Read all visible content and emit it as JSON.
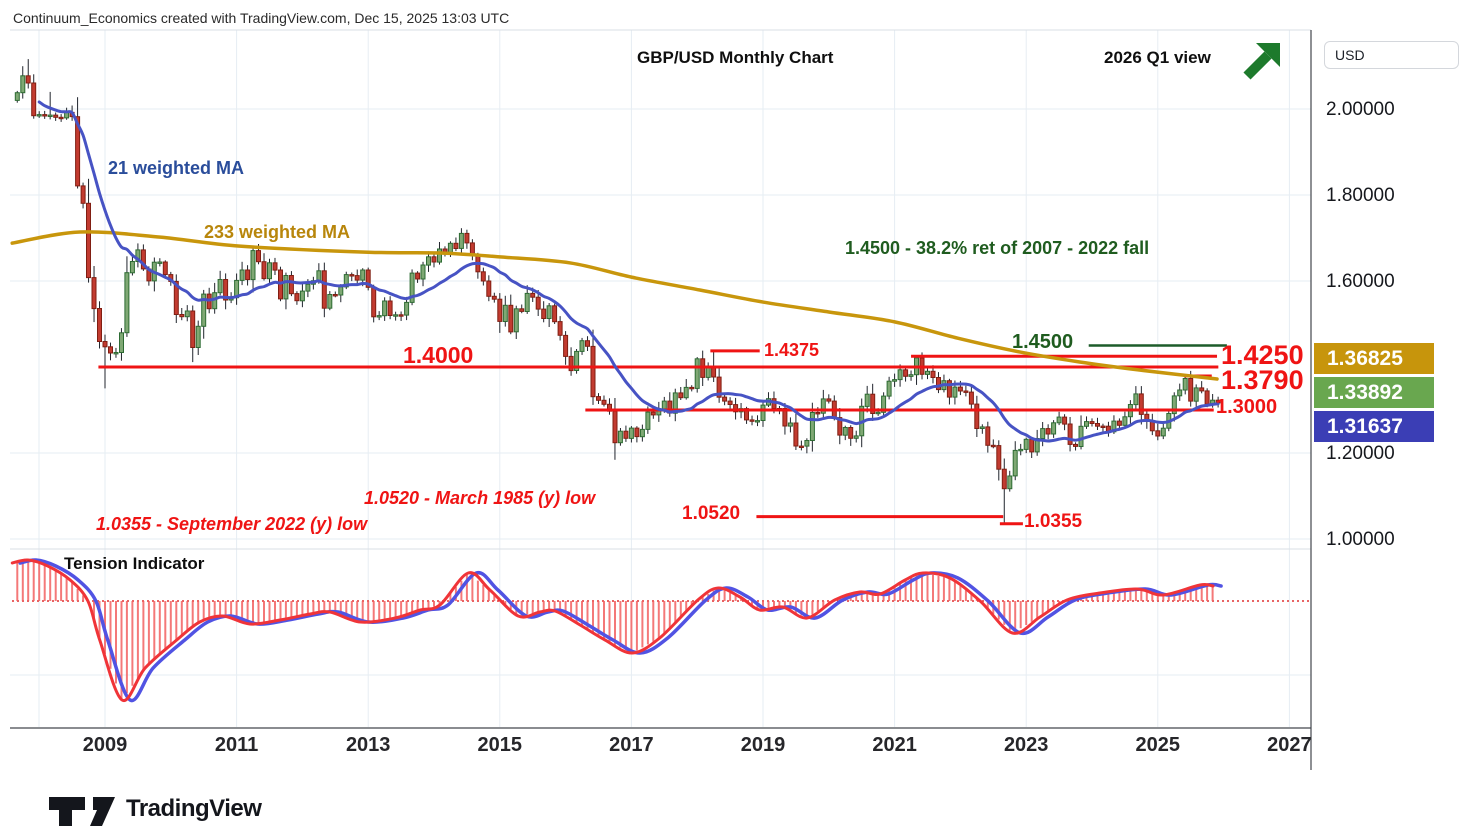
{
  "attribution": "Continuum_Economics created with TradingView.com, Dec 15, 2025 13:03 UTC",
  "title": "GBP/USD Monthly Chart",
  "view_note": "2026 Q1 view",
  "annotations": {
    "ma21": "21 weighted MA",
    "ma233": "233 weighted MA",
    "fib": "1.4500 - 38.2% ret of 2007 - 2022 fall",
    "low_1985": "1.0520 - March 1985 (y) low",
    "low_2022": "1.0355 - September 2022 (y) low",
    "tension": "Tension Indicator"
  },
  "price_axis": {
    "currency": "USD",
    "ticks": [
      {
        "label": "2.00000",
        "price": 2.0
      },
      {
        "label": "1.80000",
        "price": 1.8
      },
      {
        "label": "1.60000",
        "price": 1.6
      },
      {
        "label": "1.20000",
        "price": 1.2
      },
      {
        "label": "1.00000",
        "price": 1.0
      }
    ],
    "badges": [
      {
        "label": "1.36825",
        "value": 1.36825,
        "color": "#c7950c",
        "meaning": "233-wma-value"
      },
      {
        "label": "1.33892",
        "value": 1.33892,
        "color": "#69a74f",
        "meaning": "21-wma-value"
      },
      {
        "label": "1.31637",
        "value": 1.31637,
        "color": "#3b3eb5",
        "meaning": "last-price"
      }
    ]
  },
  "time_axis": {
    "years": [
      "2009",
      "2011",
      "2013",
      "2015",
      "2017",
      "2019",
      "2021",
      "2023",
      "2025",
      "2027"
    ]
  },
  "logo": {
    "text": "TradingView"
  },
  "chart_data": {
    "type": "candlestick",
    "symbol": "GBP/USD",
    "interval": "Monthly",
    "ylim": [
      0.97,
      2.17
    ],
    "x_years_visible": [
      2007.6,
      2027.4
    ],
    "start_month": "2007-09",
    "closes": [
      2.038,
      2.0772,
      2.0604,
      1.9843,
      1.987,
      1.9856,
      1.9859,
      1.9808,
      1.9791,
      1.992,
      1.9822,
      1.8212,
      1.7807,
      1.608,
      1.536,
      1.4592,
      1.4469,
      1.4324,
      1.4338,
      1.4796,
      1.6192,
      1.6454,
      1.6723,
      1.628,
      1.6003,
      1.6437,
      1.6441,
      1.6149,
      1.5991,
      1.5221,
      1.5169,
      1.5302,
      1.4453,
      1.4946,
      1.5695,
      1.5355,
      1.5727,
      1.6034,
      1.5558,
      1.5612,
      1.6014,
      1.6256,
      1.6033,
      1.6707,
      1.6448,
      1.6054,
      1.6424,
      1.6255,
      1.5584,
      1.6129,
      1.5706,
      1.5541,
      1.5766,
      1.5926,
      1.6008,
      1.6237,
      1.5367,
      1.5685,
      1.5675,
      1.5863,
      1.6148,
      1.6126,
      1.6021,
      1.6255,
      1.5853,
      1.5166,
      1.5195,
      1.5536,
      1.5198,
      1.5213,
      1.5207,
      1.5503,
      1.6184,
      1.6046,
      1.6371,
      1.6563,
      1.6441,
      1.6745,
      1.6667,
      1.6877,
      1.6756,
      1.7106,
      1.6885,
      1.6598,
      1.6215,
      1.6001,
      1.5645,
      1.5577,
      1.506,
      1.5436,
      1.4818,
      1.5353,
      1.5292,
      1.5712,
      1.5623,
      1.5347,
      1.5128,
      1.5424,
      1.5055,
      1.4736,
      1.4247,
      1.3917,
      1.4362,
      1.4611,
      1.448,
      1.3311,
      1.3226,
      1.3132,
      1.2972,
      1.2239,
      1.2506,
      1.234,
      1.2579,
      1.2381,
      1.255,
      1.2952,
      1.2886,
      1.3025,
      1.3206,
      1.2927,
      1.3398,
      1.3286,
      1.3525,
      1.3502,
      1.419,
      1.3758,
      1.4016,
      1.3766,
      1.3299,
      1.3206,
      1.3126,
      1.2958,
      1.3032,
      1.277,
      1.2748,
      1.2754,
      1.3113,
      1.3262,
      1.3035,
      1.3034,
      1.2626,
      1.2697,
      1.2161,
      1.216,
      1.229,
      1.2941,
      1.2924,
      1.3257,
      1.3206,
      1.2823,
      1.2415,
      1.2593,
      1.2342,
      1.2398,
      1.3085,
      1.3368,
      1.292,
      1.2947,
      1.3323,
      1.367,
      1.3707,
      1.3935,
      1.3783,
      1.3822,
      1.4212,
      1.383,
      1.3901,
      1.3756,
      1.3475,
      1.3681,
      1.3299,
      1.3532,
      1.3441,
      1.3417,
      1.3138,
      1.257,
      1.2607,
      1.2178,
      1.2173,
      1.1624,
      1.117,
      1.1466,
      1.206,
      1.2083,
      1.2318,
      1.2025,
      1.2337,
      1.2567,
      1.2442,
      1.2703,
      1.2836,
      1.2674,
      1.2199,
      1.2153,
      1.2622,
      1.2731,
      1.2687,
      1.2625,
      1.2624,
      1.2492,
      1.2742,
      1.2645,
      1.2843,
      1.3127,
      1.3375,
      1.2899,
      1.2735,
      1.2516,
      1.2396,
      1.2576,
      1.2918,
      1.3329,
      1.3465,
      1.3732,
      1.3206,
      1.3515,
      1.3445,
      1.3136,
      1.3227,
      1.31637
    ],
    "extreme_overrides": {
      "2": {
        "h": 2.1161
      },
      "6": {
        "h": 2.0397
      },
      "16": {
        "l": 1.3503
      },
      "82": {
        "h": 1.7192
      },
      "105": {
        "l": 1.3118
      },
      "109": {
        "l": 1.1841
      },
      "127": {
        "h": 1.4377
      },
      "164": {
        "h": 1.425
      },
      "180": {
        "l": 1.0355
      },
      "213": {
        "h": 1.3789
      }
    },
    "ma21_window": 21,
    "ma233_points": [
      [
        2007.59,
        1.688
      ],
      [
        2008.62,
        1.714
      ],
      [
        2009.84,
        1.702
      ],
      [
        2011.05,
        1.681
      ],
      [
        2013.0,
        1.667
      ],
      [
        2014.1,
        1.665
      ],
      [
        2015.0,
        1.656
      ],
      [
        2016.07,
        1.642
      ],
      [
        2017.0,
        1.609
      ],
      [
        2018.04,
        1.579
      ],
      [
        2019.0,
        1.551
      ],
      [
        2020.0,
        1.528
      ],
      [
        2021.0,
        1.505
      ],
      [
        2021.96,
        1.467
      ],
      [
        2022.9,
        1.435
      ],
      [
        2023.8,
        1.412
      ],
      [
        2024.72,
        1.393
      ],
      [
        2025.9,
        1.372
      ]
    ],
    "levels": [
      {
        "label": "1.4000",
        "price": 1.4,
        "from": 2008.9,
        "to": 2025.92,
        "color": "#ef1414"
      },
      {
        "label": "1.4375",
        "price": 1.4375,
        "from": 2018.2,
        "to": 2018.95,
        "color": "#ef1414"
      },
      {
        "label": "1.4500",
        "price": 1.45,
        "from": 2023.95,
        "to": 2026.05,
        "color": "#1d5c2a"
      },
      {
        "label": "1.4250",
        "price": 1.425,
        "from": 2021.25,
        "to": 2025.9,
        "color": "#ef1414"
      },
      {
        "label": "1.3790",
        "price": 1.379,
        "from": 2025.4,
        "to": 2025.82,
        "color": "#ef1414"
      },
      {
        "label": "1.3000",
        "price": 1.3,
        "from": 2016.3,
        "to": 2025.85,
        "color": "#ef1414"
      },
      {
        "label": "1.0520",
        "price": 1.052,
        "from": 2018.9,
        "to": 2022.65,
        "color": "#ef1414"
      },
      {
        "label": "1.0355",
        "price": 1.0355,
        "from": 2022.6,
        "to": 2022.95,
        "color": "#ef1414"
      }
    ],
    "tension_indicator": {
      "baseline": 0,
      "points": [
        [
          2007.59,
          0.38
        ],
        [
          2007.83,
          0.41
        ],
        [
          2008.13,
          0.35
        ],
        [
          2008.47,
          0.21
        ],
        [
          2008.74,
          0.0
        ],
        [
          2008.92,
          -0.39
        ],
        [
          2009.26,
          -0.99
        ],
        [
          2009.61,
          -0.67
        ],
        [
          2010.09,
          -0.39
        ],
        [
          2010.44,
          -0.21
        ],
        [
          2010.79,
          -0.15
        ],
        [
          2011.2,
          -0.23
        ],
        [
          2011.66,
          -0.19
        ],
        [
          2012.12,
          -0.13
        ],
        [
          2012.42,
          -0.11
        ],
        [
          2012.88,
          -0.21
        ],
        [
          2013.41,
          -0.17
        ],
        [
          2013.79,
          -0.09
        ],
        [
          2014.09,
          -0.04
        ],
        [
          2014.52,
          0.28
        ],
        [
          2014.85,
          0.11
        ],
        [
          2015.28,
          -0.15
        ],
        [
          2015.61,
          -0.11
        ],
        [
          2015.84,
          -0.1
        ],
        [
          2016.22,
          -0.24
        ],
        [
          2016.6,
          -0.39
        ],
        [
          2017.01,
          -0.52
        ],
        [
          2017.43,
          -0.37
        ],
        [
          2018.01,
          0.01
        ],
        [
          2018.32,
          0.13
        ],
        [
          2018.65,
          0.04
        ],
        [
          2018.95,
          -0.09
        ],
        [
          2019.3,
          -0.06
        ],
        [
          2019.67,
          -0.17
        ],
        [
          2020.09,
          0.01
        ],
        [
          2020.47,
          0.09
        ],
        [
          2020.78,
          0.07
        ],
        [
          2021.16,
          0.21
        ],
        [
          2021.43,
          0.28
        ],
        [
          2021.84,
          0.23
        ],
        [
          2022.3,
          0.0
        ],
        [
          2022.79,
          -0.32
        ],
        [
          2023.21,
          -0.16
        ],
        [
          2023.62,
          0.01
        ],
        [
          2024.12,
          0.08
        ],
        [
          2024.69,
          0.12
        ],
        [
          2025.08,
          0.06
        ],
        [
          2025.64,
          0.16
        ],
        [
          2025.84,
          0.15
        ]
      ]
    },
    "colors": {
      "up": "#7fa874",
      "up_border": "#2d6b33",
      "down": "#c23b30",
      "down_border": "#801e12",
      "wick": "#20242c",
      "ma21": "#4753c4",
      "ma233": "#c8960c",
      "tension_red": "#f03438",
      "tension_blue": "#5153e3",
      "histogram": "#f26060",
      "baseline_dotted": "#e03131",
      "grid": "#e6edf3",
      "axis_line": "#43474e"
    }
  }
}
